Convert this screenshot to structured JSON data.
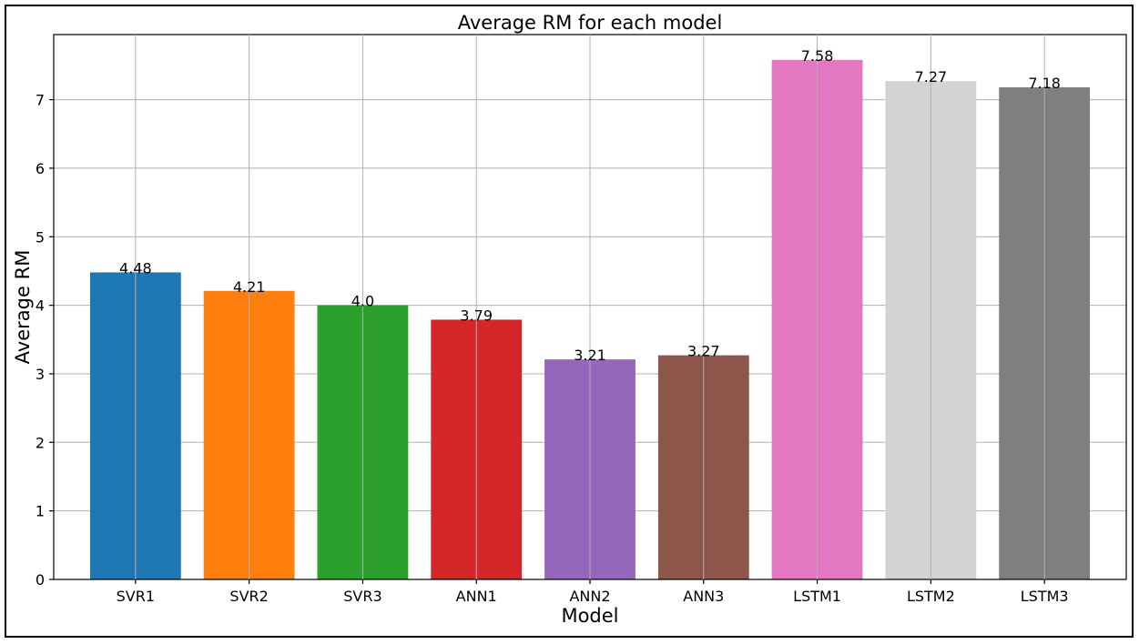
{
  "chart_data": {
    "type": "bar",
    "title": "Average RM for each model",
    "xlabel": "Model",
    "ylabel": "Average RM",
    "categories": [
      "SVR1",
      "SVR2",
      "SVR3",
      "ANN1",
      "ANN2",
      "ANN3",
      "LSTM1",
      "LSTM2",
      "LSTM3"
    ],
    "values": [
      4.48,
      4.21,
      4.0,
      3.79,
      3.21,
      3.27,
      7.58,
      7.27,
      7.18
    ],
    "value_labels": [
      "4.48",
      "4.21",
      "4.0",
      "3.79",
      "3.21",
      "3.27",
      "7.58",
      "7.27",
      "7.18"
    ],
    "colors": [
      "#1f77b4",
      "#ff7f0e",
      "#2ca02c",
      "#d62728",
      "#9467bd",
      "#8c564b",
      "#e377c2",
      "#d3d3d3",
      "#7f7f7f"
    ],
    "yticks": [
      0,
      1,
      2,
      3,
      4,
      5,
      6,
      7
    ],
    "ytick_labels": [
      "0",
      "1",
      "2",
      "3",
      "4",
      "5",
      "6",
      "7"
    ],
    "ylim": [
      0,
      7.95
    ],
    "grid": true
  }
}
